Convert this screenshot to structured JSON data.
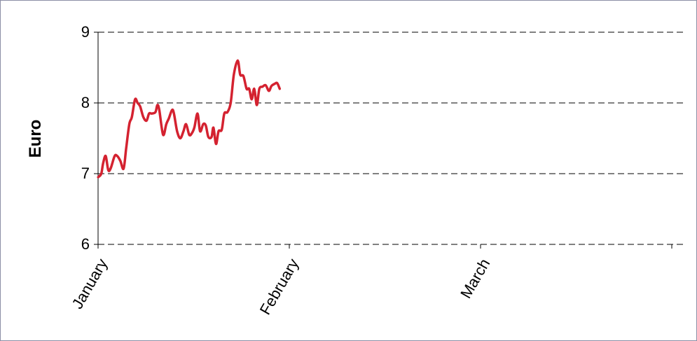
{
  "chart_data": {
    "type": "line",
    "title": "",
    "xlabel": "",
    "ylabel": "Euro",
    "ylim": [
      6,
      9
    ],
    "yticks": [
      6,
      7,
      8,
      9
    ],
    "grid": "horizontal-dashed",
    "x_categories": [
      "January",
      "February",
      "March"
    ],
    "series": [
      {
        "color": "#d42230",
        "points": [
          [
            0.02,
            6.95
          ],
          [
            0.5,
            7.0
          ],
          [
            0.8,
            7.15
          ],
          [
            1.2,
            7.25
          ],
          [
            1.6,
            7.05
          ],
          [
            2.0,
            7.08
          ],
          [
            2.6,
            7.25
          ],
          [
            3.0,
            7.25
          ],
          [
            3.5,
            7.18
          ],
          [
            4.0,
            7.07
          ],
          [
            4.4,
            7.35
          ],
          [
            4.9,
            7.7
          ],
          [
            5.3,
            7.8
          ],
          [
            5.8,
            8.05
          ],
          [
            6.2,
            8.0
          ],
          [
            6.6,
            7.95
          ],
          [
            7.1,
            7.8
          ],
          [
            7.6,
            7.75
          ],
          [
            8.0,
            7.85
          ],
          [
            8.4,
            7.85
          ],
          [
            9.0,
            7.87
          ],
          [
            9.3,
            7.97
          ],
          [
            9.6,
            7.9
          ],
          [
            10.2,
            7.55
          ],
          [
            10.7,
            7.7
          ],
          [
            11.1,
            7.78
          ],
          [
            11.6,
            7.9
          ],
          [
            11.9,
            7.85
          ],
          [
            12.4,
            7.6
          ],
          [
            12.9,
            7.5
          ],
          [
            13.4,
            7.6
          ],
          [
            13.8,
            7.7
          ],
          [
            14.3,
            7.55
          ],
          [
            14.7,
            7.57
          ],
          [
            15.1,
            7.65
          ],
          [
            15.6,
            7.85
          ],
          [
            16.0,
            7.6
          ],
          [
            16.5,
            7.7
          ],
          [
            16.9,
            7.68
          ],
          [
            17.3,
            7.52
          ],
          [
            17.8,
            7.52
          ],
          [
            18.1,
            7.65
          ],
          [
            18.5,
            7.42
          ],
          [
            18.9,
            7.6
          ],
          [
            19.4,
            7.62
          ],
          [
            19.8,
            7.85
          ],
          [
            20.3,
            7.87
          ],
          [
            20.8,
            8.0
          ],
          [
            21.3,
            8.4
          ],
          [
            21.9,
            8.6
          ],
          [
            22.3,
            8.4
          ],
          [
            22.8,
            8.38
          ],
          [
            23.3,
            8.2
          ],
          [
            23.7,
            8.2
          ],
          [
            24.1,
            8.05
          ],
          [
            24.5,
            8.2
          ],
          [
            24.9,
            7.97
          ],
          [
            25.3,
            8.2
          ],
          [
            25.8,
            8.23
          ],
          [
            26.3,
            8.25
          ],
          [
            26.8,
            8.17
          ],
          [
            27.2,
            8.24
          ],
          [
            27.7,
            8.27
          ],
          [
            28.1,
            8.28
          ],
          [
            28.5,
            8.2
          ]
        ]
      }
    ]
  }
}
